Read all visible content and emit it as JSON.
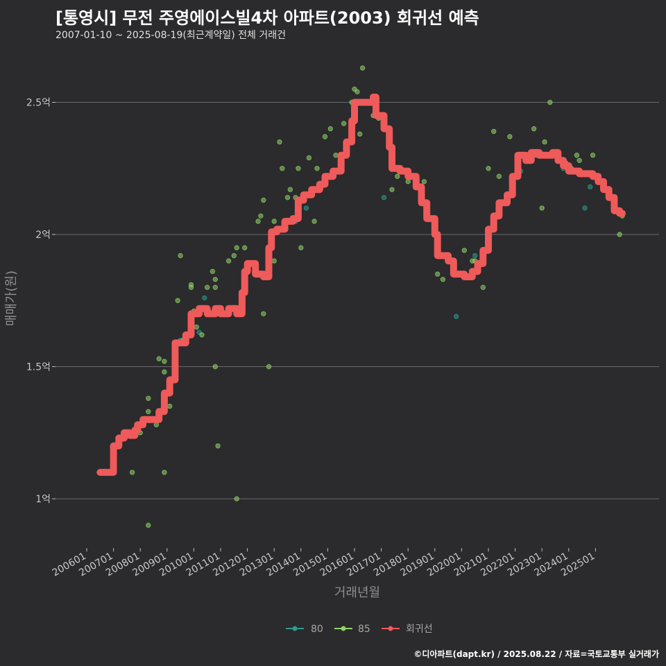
{
  "header": {
    "title": "[통영시] 무전 주영에이스빌4차 아파트(2003) 회귀선 예측",
    "subtitle": "2007-01-10 ~ 2025-08-19(최근계약일) 전체 거래건"
  },
  "footer": {
    "credit": "©디아파트(dapt.kr) / 2025.08.22 / 자료=국토교통부 실거래가"
  },
  "colors": {
    "background": "#2b2a2c",
    "grid": "#6b6b6b",
    "s80": "#2a9d8f",
    "s85": "#8fd46a",
    "reg": "#ef5a5a"
  },
  "chart_data": {
    "type": "scatter",
    "title": "[통영시] 무전 주영에이스빌4차 아파트(2003) 회귀선 예측",
    "subtitle": "2007-01-10 ~ 2025-08-19(최근계약일) 전체 거래건",
    "xlabel": "거래년월",
    "ylabel": "매매가(원)",
    "xlim": [
      2006.5,
      2026.5
    ],
    "ylim": [
      0.82,
      2.72
    ],
    "y_unit": "억",
    "y_ticks": [
      {
        "v": 1,
        "label": "1억"
      },
      {
        "v": 1.5,
        "label": "1.5억"
      },
      {
        "v": 2,
        "label": "2억"
      },
      {
        "v": 2.5,
        "label": "2.5억"
      }
    ],
    "x_ticks": [
      {
        "v": 2006.0,
        "label": "200601"
      },
      {
        "v": 2007.0,
        "label": "200701"
      },
      {
        "v": 2008.0,
        "label": "200801"
      },
      {
        "v": 2009.0,
        "label": "200901"
      },
      {
        "v": 2010.0,
        "label": "201001"
      },
      {
        "v": 2011.0,
        "label": "201101"
      },
      {
        "v": 2012.0,
        "label": "201201"
      },
      {
        "v": 2013.0,
        "label": "201301"
      },
      {
        "v": 2014.0,
        "label": "201401"
      },
      {
        "v": 2015.0,
        "label": "201501"
      },
      {
        "v": 2016.0,
        "label": "201601"
      },
      {
        "v": 2017.0,
        "label": "201701"
      },
      {
        "v": 2018.0,
        "label": "201801"
      },
      {
        "v": 2019.0,
        "label": "201901"
      },
      {
        "v": 2020.0,
        "label": "202001"
      },
      {
        "v": 2021.0,
        "label": "202101"
      },
      {
        "v": 2022.0,
        "label": "202201"
      },
      {
        "v": 2023.0,
        "label": "202301"
      },
      {
        "v": 2024.0,
        "label": "202401"
      },
      {
        "v": 2025.0,
        "label": "202501"
      }
    ],
    "legend": [
      {
        "name": "80",
        "color": "#2a9d8f"
      },
      {
        "name": "85",
        "color": "#8fd46a"
      },
      {
        "name": "회귀선",
        "color": "#ef5a5a"
      }
    ],
    "series": [
      {
        "name": "80",
        "type": "scatter",
        "points": [
          [
            2009.5,
            1.6
          ],
          [
            2010.2,
            1.63
          ],
          [
            2010.4,
            1.76
          ],
          [
            2013.8,
            2.05
          ],
          [
            2014.2,
            2.1
          ],
          [
            2017.1,
            2.14
          ],
          [
            2019.8,
            1.69
          ],
          [
            2020.5,
            1.92
          ],
          [
            2022.2,
            2.24
          ],
          [
            2023.8,
            2.25
          ],
          [
            2024.6,
            2.1
          ],
          [
            2024.8,
            2.18
          ]
        ]
      },
      {
        "name": "85",
        "type": "scatter",
        "points": [
          [
            2007.7,
            1.1
          ],
          [
            2008.0,
            1.25
          ],
          [
            2008.3,
            1.33
          ],
          [
            2008.3,
            1.38
          ],
          [
            2008.3,
            0.9
          ],
          [
            2008.6,
            1.28
          ],
          [
            2008.7,
            1.53
          ],
          [
            2008.9,
            1.48
          ],
          [
            2008.9,
            1.52
          ],
          [
            2008.9,
            1.1
          ],
          [
            2009.1,
            1.35
          ],
          [
            2009.4,
            1.75
          ],
          [
            2009.5,
            1.92
          ],
          [
            2009.6,
            1.6
          ],
          [
            2009.9,
            1.8
          ],
          [
            2009.9,
            1.81
          ],
          [
            2010.0,
            1.71
          ],
          [
            2010.1,
            1.65
          ],
          [
            2010.3,
            1.62
          ],
          [
            2010.5,
            1.8
          ],
          [
            2010.7,
            1.86
          ],
          [
            2010.8,
            1.5
          ],
          [
            2010.8,
            1.8
          ],
          [
            2010.8,
            1.83
          ],
          [
            2010.9,
            1.2
          ],
          [
            2011.1,
            1.7
          ],
          [
            2011.3,
            1.9
          ],
          [
            2011.5,
            1.92
          ],
          [
            2011.6,
            1.95
          ],
          [
            2011.6,
            1.0
          ],
          [
            2011.9,
            1.95
          ],
          [
            2012.4,
            2.05
          ],
          [
            2012.5,
            2.07
          ],
          [
            2012.6,
            1.7
          ],
          [
            2012.8,
            1.5
          ],
          [
            2012.6,
            2.13
          ],
          [
            2013.0,
            2.05
          ],
          [
            2013.0,
            1.9
          ],
          [
            2013.2,
            2.35
          ],
          [
            2013.3,
            2.25
          ],
          [
            2013.5,
            2.14
          ],
          [
            2013.6,
            2.17
          ],
          [
            2013.8,
            2.14
          ],
          [
            2013.9,
            2.25
          ],
          [
            2014.0,
            1.95
          ],
          [
            2014.3,
            2.29
          ],
          [
            2014.5,
            2.05
          ],
          [
            2014.6,
            2.25
          ],
          [
            2014.9,
            2.37
          ],
          [
            2015.1,
            2.4
          ],
          [
            2015.3,
            2.3
          ],
          [
            2015.6,
            2.42
          ],
          [
            2015.9,
            2.5
          ],
          [
            2016.0,
            2.55
          ],
          [
            2016.1,
            2.54
          ],
          [
            2016.2,
            2.38
          ],
          [
            2016.3,
            2.63
          ],
          [
            2016.7,
            2.45
          ],
          [
            2016.9,
            2.44
          ],
          [
            2017.4,
            2.17
          ],
          [
            2017.6,
            2.22
          ],
          [
            2018.0,
            2.2
          ],
          [
            2018.3,
            2.2
          ],
          [
            2018.6,
            2.2
          ],
          [
            2019.1,
            1.85
          ],
          [
            2019.3,
            1.83
          ],
          [
            2019.7,
            1.9
          ],
          [
            2020.1,
            1.94
          ],
          [
            2020.4,
            1.9
          ],
          [
            2020.5,
            1.9
          ],
          [
            2020.8,
            1.8
          ],
          [
            2021.0,
            2.25
          ],
          [
            2021.2,
            2.39
          ],
          [
            2021.4,
            2.22
          ],
          [
            2021.8,
            2.37
          ],
          [
            2022.3,
            2.3
          ],
          [
            2022.7,
            2.4
          ],
          [
            2022.8,
            2.3
          ],
          [
            2023.0,
            2.1
          ],
          [
            2023.1,
            2.35
          ],
          [
            2023.3,
            2.5
          ],
          [
            2023.5,
            2.3
          ],
          [
            2023.9,
            2.27
          ],
          [
            2024.1,
            2.25
          ],
          [
            2024.3,
            2.3
          ],
          [
            2024.4,
            2.28
          ],
          [
            2024.9,
            2.3
          ],
          [
            2025.4,
            2.17
          ],
          [
            2025.9,
            2.0
          ],
          [
            2026.0,
            2.07
          ]
        ]
      },
      {
        "name": "회귀선",
        "type": "step-line",
        "points": [
          [
            2006.5,
            1.1
          ],
          [
            2006.9,
            1.1
          ],
          [
            2007.0,
            1.2
          ],
          [
            2007.2,
            1.23
          ],
          [
            2007.4,
            1.25
          ],
          [
            2007.6,
            1.24
          ],
          [
            2007.8,
            1.26
          ],
          [
            2007.9,
            1.28
          ],
          [
            2008.1,
            1.3
          ],
          [
            2008.5,
            1.3
          ],
          [
            2008.7,
            1.33
          ],
          [
            2008.9,
            1.4
          ],
          [
            2009.1,
            1.45
          ],
          [
            2009.3,
            1.59
          ],
          [
            2009.7,
            1.62
          ],
          [
            2009.9,
            1.7
          ],
          [
            2010.2,
            1.72
          ],
          [
            2010.5,
            1.7
          ],
          [
            2010.8,
            1.72
          ],
          [
            2011.0,
            1.7
          ],
          [
            2011.3,
            1.72
          ],
          [
            2011.6,
            1.7
          ],
          [
            2011.8,
            1.78
          ],
          [
            2011.9,
            1.86
          ],
          [
            2012.0,
            1.89
          ],
          [
            2012.3,
            1.85
          ],
          [
            2012.6,
            1.84
          ],
          [
            2012.8,
            1.95
          ],
          [
            2012.9,
            2.01
          ],
          [
            2013.1,
            2.02
          ],
          [
            2013.4,
            2.05
          ],
          [
            2013.7,
            2.06
          ],
          [
            2013.9,
            2.13
          ],
          [
            2014.1,
            2.15
          ],
          [
            2014.4,
            2.17
          ],
          [
            2014.7,
            2.19
          ],
          [
            2014.9,
            2.22
          ],
          [
            2015.2,
            2.24
          ],
          [
            2015.5,
            2.3
          ],
          [
            2015.7,
            2.35
          ],
          [
            2015.9,
            2.43
          ],
          [
            2016.0,
            2.5
          ],
          [
            2016.4,
            2.5
          ],
          [
            2016.7,
            2.52
          ],
          [
            2016.8,
            2.45
          ],
          [
            2017.1,
            2.4
          ],
          [
            2017.3,
            2.33
          ],
          [
            2017.4,
            2.25
          ],
          [
            2017.7,
            2.24
          ],
          [
            2018.0,
            2.22
          ],
          [
            2018.3,
            2.18
          ],
          [
            2018.5,
            2.12
          ],
          [
            2018.7,
            2.06
          ],
          [
            2019.0,
            2.0
          ],
          [
            2019.1,
            1.92
          ],
          [
            2019.5,
            1.9
          ],
          [
            2019.7,
            1.85
          ],
          [
            2020.1,
            1.84
          ],
          [
            2020.4,
            1.86
          ],
          [
            2020.6,
            1.89
          ],
          [
            2020.8,
            1.94
          ],
          [
            2021.0,
            2.02
          ],
          [
            2021.2,
            2.07
          ],
          [
            2021.4,
            2.12
          ],
          [
            2021.7,
            2.15
          ],
          [
            2021.9,
            2.22
          ],
          [
            2022.1,
            2.3
          ],
          [
            2022.4,
            2.28
          ],
          [
            2022.6,
            2.31
          ],
          [
            2022.9,
            2.3
          ],
          [
            2023.2,
            2.3
          ],
          [
            2023.4,
            2.31
          ],
          [
            2023.6,
            2.28
          ],
          [
            2023.8,
            2.26
          ],
          [
            2024.0,
            2.24
          ],
          [
            2024.4,
            2.23
          ],
          [
            2024.7,
            2.23
          ],
          [
            2024.9,
            2.22
          ],
          [
            2025.1,
            2.2
          ],
          [
            2025.3,
            2.17
          ],
          [
            2025.5,
            2.14
          ],
          [
            2025.7,
            2.09
          ],
          [
            2025.9,
            2.08
          ],
          [
            2026.0,
            2.08
          ]
        ]
      }
    ]
  }
}
